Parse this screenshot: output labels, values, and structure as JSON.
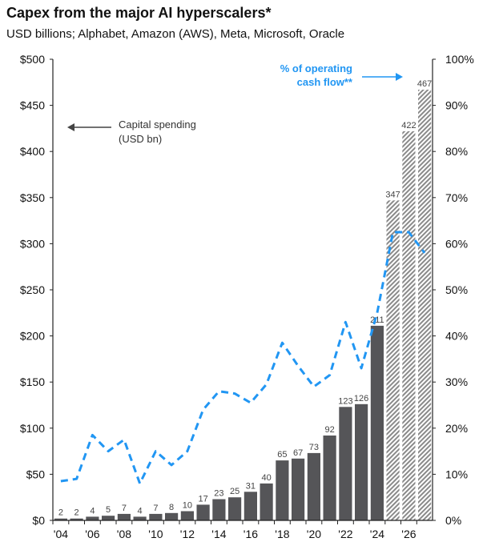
{
  "header": {
    "title": "Capex from the major AI hyperscalers*",
    "subtitle": "USD billions; Alphabet, Amazon (AWS), Meta, Microsoft, Oracle"
  },
  "annotations": {
    "capital_spending_line1": "Capital spending",
    "capital_spending_line2": "(USD bn)",
    "ocf_line1": "% of operating",
    "ocf_line2": "cash flow**"
  },
  "colors": {
    "bar_actual": "#555558",
    "bar_forecast_stripe": "#8a8a8a",
    "line": "#2196f3",
    "axis": "#222222"
  },
  "chart_data": {
    "type": "bar",
    "categories": [
      "2004",
      "2005",
      "2006",
      "2007",
      "2008",
      "2009",
      "2010",
      "2011",
      "2012",
      "2013",
      "2014",
      "2015",
      "2016",
      "2017",
      "2018",
      "2019",
      "2020",
      "2021",
      "2022",
      "2023",
      "2024",
      "2025",
      "2026",
      "2027"
    ],
    "series": [
      {
        "values": [
          2,
          2,
          4,
          5,
          7,
          4,
          7,
          8,
          10,
          17,
          23,
          25,
          31,
          40,
          65,
          67,
          73,
          92,
          123,
          126,
          211,
          347,
          422,
          467
        ],
        "forecast_from_index": 21,
        "axis": "left"
      },
      {
        "type": "line",
        "style": "dashed",
        "axis": "right",
        "values": [
          8.5,
          9,
          18.5,
          15,
          17.5,
          8,
          15,
          12,
          15,
          24,
          28,
          27.5,
          25.5,
          29.5,
          38.5,
          33.5,
          29,
          31.5,
          43,
          33,
          45,
          62.5,
          62.5,
          58
        ]
      }
    ],
    "y_left": {
      "ylim": [
        0,
        500
      ],
      "ticks": [
        "$0",
        "$50",
        "$100",
        "$150",
        "$200",
        "$250",
        "$300",
        "$350",
        "$400",
        "$450",
        "$500"
      ]
    },
    "y_right": {
      "ylim": [
        0,
        100
      ],
      "ticks": [
        "0%",
        "10%",
        "20%",
        "30%",
        "40%",
        "50%",
        "60%",
        "70%",
        "80%",
        "90%",
        "100%"
      ]
    },
    "x_ticks": [
      "'04",
      "'06",
      "'08",
      "'10",
      "'12",
      "'14",
      "'16",
      "'18",
      "'20",
      "'22",
      "'24",
      "'26"
    ],
    "grid": false
  }
}
